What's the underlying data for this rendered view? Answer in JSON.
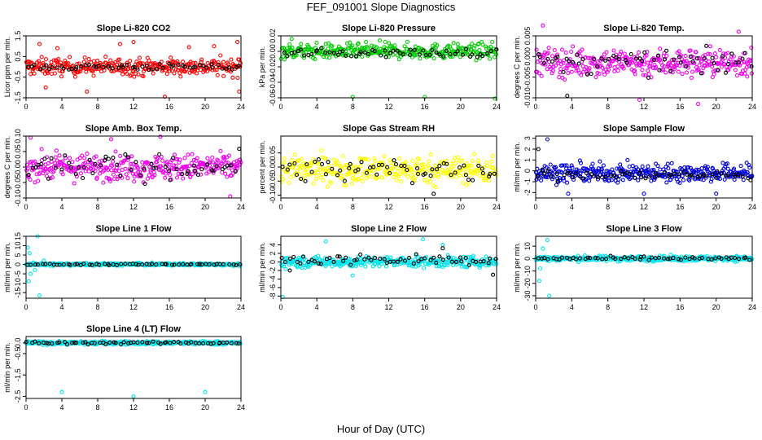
{
  "figure": {
    "title": "FEF_091001  Slope Diagnostics",
    "xlabel": "Hour of Day (UTC)"
  },
  "chart_data": [
    {
      "type": "scatter",
      "title": "Slope Li-820 CO2",
      "ylabel": "Licor ppm per min.",
      "xlim": [
        0,
        24
      ],
      "ylim": [
        -1.5,
        1.5
      ],
      "xticks": [
        0,
        4,
        8,
        12,
        16,
        20,
        24
      ],
      "yticks": [
        -1.5,
        -0.5,
        0.5,
        1.5
      ],
      "ytick_labels": [
        "-1.5",
        "-0.5",
        "0.5",
        "1.5"
      ],
      "series": [
        {
          "color": "#ff0000",
          "center": 0.0,
          "spread": 0.3,
          "count": 320,
          "outliers": [
            [
              1.5,
              1.1
            ],
            [
              2.2,
              -1.0
            ],
            [
              3.5,
              0.9
            ],
            [
              6.8,
              -1.2
            ],
            [
              10.5,
              1.1
            ],
            [
              12.0,
              1.2
            ],
            [
              15.5,
              -1.45
            ],
            [
              18.2,
              0.95
            ],
            [
              21.0,
              1.0
            ],
            [
              23.6,
              1.2
            ],
            [
              23.8,
              -1.2
            ]
          ]
        },
        {
          "color": "#000000",
          "center": 0.0,
          "spread": 0.12,
          "count": 60,
          "outliers": []
        }
      ]
    },
    {
      "type": "scatter",
      "title": "Slope Li-820 Pressure",
      "ylabel": "kPa per min.",
      "xlim": [
        0,
        24
      ],
      "ylim": [
        -0.06,
        0.02
      ],
      "xticks": [
        0,
        4,
        8,
        12,
        16,
        20,
        24
      ],
      "yticks": [
        -0.06,
        -0.04,
        -0.02,
        0.0,
        0.02
      ],
      "ytick_labels": [
        "-0.06",
        "-0.04",
        "-0.02",
        "0.00",
        "0.02"
      ],
      "series": [
        {
          "color": "#00cc00",
          "center": 0.0,
          "spread": 0.007,
          "count": 340,
          "outliers": [
            [
              8.0,
              -0.059
            ],
            [
              16.0,
              -0.059
            ],
            [
              23.8,
              -0.061
            ],
            [
              1.2,
              0.016
            ],
            [
              11.0,
              0.014
            ]
          ]
        },
        {
          "color": "#000000",
          "center": -0.002,
          "spread": 0.004,
          "count": 60,
          "outliers": []
        }
      ]
    },
    {
      "type": "scatter",
      "title": "Slope Li-820 Temp.",
      "ylabel": "degrees C per min.",
      "xlim": [
        0,
        24
      ],
      "ylim": [
        -0.01,
        0.005
      ],
      "xticks": [
        0,
        4,
        8,
        12,
        16,
        20,
        24
      ],
      "yticks": [
        -0.01,
        -0.005,
        0.0,
        0.005
      ],
      "ytick_labels": [
        "-0.010",
        "-0.005",
        "0.000",
        "0.005"
      ],
      "series": [
        {
          "color": "#ee00ee",
          "center": -0.0015,
          "spread": 0.0025,
          "count": 340,
          "outliers": [
            [
              0.8,
              0.0075
            ],
            [
              11.5,
              -0.0105
            ],
            [
              18.0,
              -0.0115
            ],
            [
              22.5,
              0.006
            ]
          ]
        },
        {
          "color": "#000000",
          "center": -0.0015,
          "spread": 0.002,
          "count": 60,
          "outliers": [
            [
              3.5,
              -0.0095
            ]
          ]
        }
      ]
    },
    {
      "type": "scatter",
      "title": "Slope Amb. Box Temp.",
      "ylabel": "degrees C per min.",
      "xlim": [
        0,
        24
      ],
      "ylim": [
        -0.1,
        0.1
      ],
      "xticks": [
        0,
        4,
        8,
        12,
        16,
        20,
        24
      ],
      "yticks": [
        -0.1,
        -0.05,
        0.0,
        0.05,
        0.1
      ],
      "ytick_labels": [
        "-0.10",
        "-0.05",
        "0.00",
        "0.05",
        "0.10"
      ],
      "series": [
        {
          "color": "#ee00ee",
          "center": 0.0,
          "spread": 0.03,
          "count": 340,
          "outliers": [
            [
              0.5,
              0.095
            ],
            [
              9.5,
              0.09
            ],
            [
              15.0,
              0.098
            ],
            [
              22.8,
              -0.095
            ]
          ]
        },
        {
          "color": "#000000",
          "center": 0.0,
          "spread": 0.03,
          "count": 60,
          "outliers": []
        }
      ]
    },
    {
      "type": "scatter",
      "title": "Slope Gas Stream RH",
      "ylabel": "percent per min.",
      "xlim": [
        0,
        24
      ],
      "ylim": [
        -0.11,
        0.11
      ],
      "xticks": [
        0,
        4,
        8,
        12,
        16,
        20,
        24
      ],
      "yticks": [
        -0.1,
        -0.05,
        0.0,
        0.05
      ],
      "ytick_labels": [
        "-0.10",
        "-0.05",
        "0.00",
        "0.05"
      ],
      "series": [
        {
          "color": "#ffff00",
          "center": -0.01,
          "spread": 0.035,
          "count": 360,
          "outliers": []
        },
        {
          "color": "#000000",
          "center": -0.01,
          "spread": 0.03,
          "count": 60,
          "outliers": [
            [
              17.0,
              -0.095
            ]
          ]
        }
      ]
    },
    {
      "type": "scatter",
      "title": "Slope Sample Flow",
      "ylabel": "ml/min per min.",
      "xlim": [
        0,
        24
      ],
      "ylim": [
        -2.5,
        3.2
      ],
      "xticks": [
        0,
        4,
        8,
        12,
        16,
        20,
        24
      ],
      "yticks": [
        -2,
        -1,
        0,
        1,
        2,
        3
      ],
      "ytick_labels": [
        "-2",
        "-1",
        "0",
        "1",
        "2",
        "3"
      ],
      "series": [
        {
          "color": "#0000dd",
          "center": -0.2,
          "spread": 0.6,
          "count": 360,
          "outliers": [
            [
              1.3,
              2.9
            ],
            [
              3.6,
              -2.1
            ],
            [
              12.0,
              -2.1
            ],
            [
              20.0,
              -2.1
            ]
          ]
        },
        {
          "color": "#000000",
          "center": -0.4,
          "spread": 0.35,
          "count": 60,
          "outliers": [
            [
              0.3,
              2.0
            ]
          ]
        }
      ]
    },
    {
      "type": "scatter",
      "title": "Slope Line 1 Flow",
      "ylabel": "ml/min per min.",
      "xlim": [
        0,
        24
      ],
      "ylim": [
        -18,
        15
      ],
      "xticks": [
        0,
        4,
        8,
        12,
        16,
        20,
        24
      ],
      "yticks": [
        -15,
        -10,
        -5,
        0,
        5,
        10,
        15
      ],
      "ytick_labels": [
        "-15",
        "-10",
        "-5",
        "0",
        "5",
        "10",
        "15"
      ],
      "series": [
        {
          "color": "#00e5ee",
          "center": 0.0,
          "spread": 0.5,
          "count": 340,
          "outliers": [
            [
              0.2,
              9.0
            ],
            [
              0.4,
              6.0
            ],
            [
              0.5,
              -5.0
            ],
            [
              0.3,
              -9.0
            ],
            [
              0.8,
              1.0
            ],
            [
              1.0,
              -3.0
            ],
            [
              1.3,
              15.0
            ],
            [
              1.5,
              -16.5
            ],
            [
              2.0,
              2.0
            ]
          ]
        },
        {
          "color": "#000000",
          "center": 0.0,
          "spread": 0.3,
          "count": 60,
          "outliers": []
        }
      ]
    },
    {
      "type": "scatter",
      "title": "Slope Line 2 Flow",
      "ylabel": "ml/min per min.",
      "xlim": [
        0,
        24
      ],
      "ylim": [
        -8.5,
        6
      ],
      "xticks": [
        0,
        4,
        8,
        12,
        16,
        20,
        24
      ],
      "yticks": [
        -8,
        -6,
        -4,
        -2,
        0,
        2,
        4
      ],
      "ytick_labels": [
        "-8",
        "-6",
        "-4",
        "-2",
        "0",
        "2",
        "4"
      ],
      "series": [
        {
          "color": "#00e5ee",
          "center": 0.0,
          "spread": 0.9,
          "count": 340,
          "outliers": [
            [
              0.2,
              -8.2
            ],
            [
              5.0,
              4.8
            ],
            [
              8.0,
              -3.2
            ],
            [
              15.8,
              5.3
            ],
            [
              18.0,
              4.0
            ]
          ]
        },
        {
          "color": "#000000",
          "center": 0.5,
          "spread": 0.9,
          "count": 60,
          "outliers": [
            [
              23.6,
              -3.0
            ],
            [
              1.0,
              -2.0
            ],
            [
              18.0,
              3.2
            ]
          ]
        }
      ]
    },
    {
      "type": "scatter",
      "title": "Slope Line 3 Flow",
      "ylabel": "ml/min per min.",
      "xlim": [
        0,
        24
      ],
      "ylim": [
        -32,
        18
      ],
      "xticks": [
        0,
        4,
        8,
        12,
        16,
        20,
        24
      ],
      "yticks": [
        -30,
        -20,
        -10,
        0,
        10
      ],
      "ytick_labels": [
        "-30",
        "-20",
        "-10",
        "0",
        "10"
      ],
      "series": [
        {
          "color": "#00e5ee",
          "center": 0.0,
          "spread": 1.5,
          "count": 340,
          "outliers": [
            [
              1.3,
              15.0
            ],
            [
              1.5,
              -30.0
            ],
            [
              0.5,
              -8.0
            ],
            [
              0.4,
              -18.0
            ],
            [
              0.8,
              8.0
            ]
          ]
        },
        {
          "color": "#000000",
          "center": 0.0,
          "spread": 1.0,
          "count": 60,
          "outliers": []
        }
      ]
    },
    {
      "type": "scatter",
      "title": "Slope Line 4 (LT) Flow",
      "ylabel": "ml/min per min.",
      "xlim": [
        0,
        24
      ],
      "ylim": [
        -2.6,
        0.3
      ],
      "xticks": [
        0,
        4,
        8,
        12,
        16,
        20,
        24
      ],
      "yticks": [
        -2.5,
        -1.5,
        -0.5,
        0.0
      ],
      "ytick_labels": [
        "-2.5",
        "-1.5",
        "-0.5",
        "0.0"
      ],
      "series": [
        {
          "color": "#00e5ee",
          "center": 0.0,
          "spread": 0.06,
          "count": 340,
          "outliers": [
            [
              4.0,
              -2.3
            ],
            [
              12.0,
              -2.5
            ],
            [
              20.0,
              -2.3
            ]
          ]
        },
        {
          "color": "#000000",
          "center": 0.0,
          "spread": 0.04,
          "count": 60,
          "outliers": []
        }
      ]
    }
  ]
}
